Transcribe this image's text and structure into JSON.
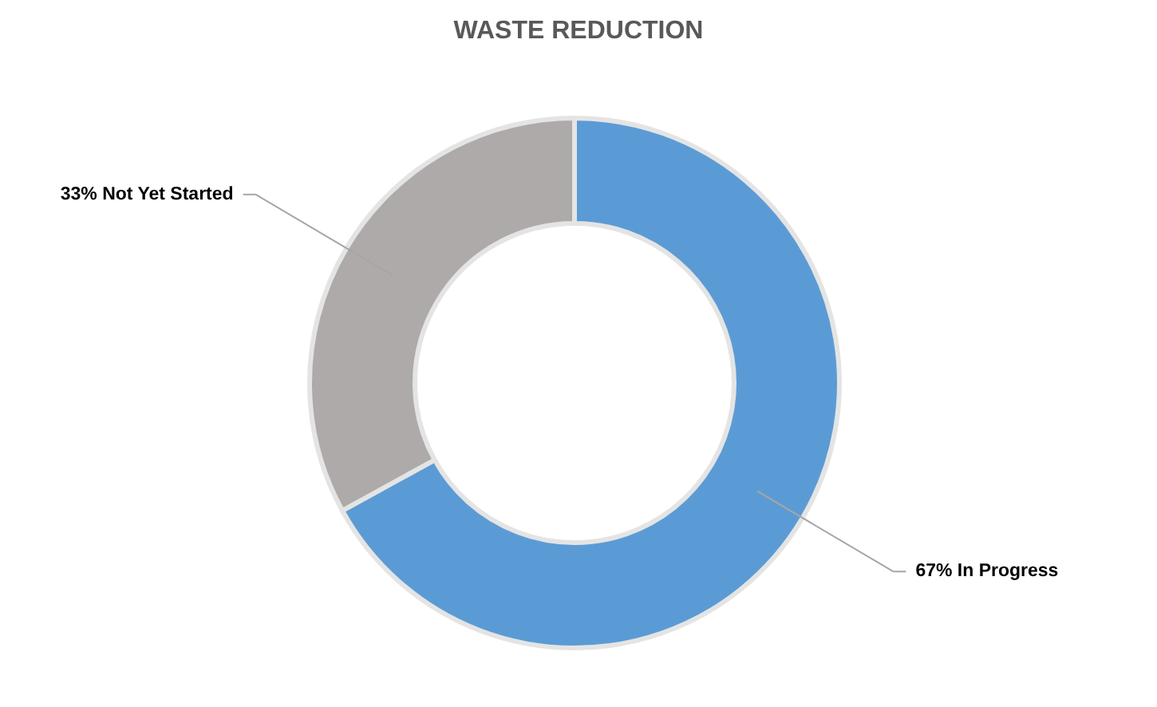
{
  "chart_data": {
    "type": "donut",
    "title": "WASTE REDUCTION",
    "categories": [
      "In Progress",
      "Not Yet Started"
    ],
    "values": [
      67,
      33
    ],
    "colors": [
      "#5b9bd5",
      "#aeaaaa"
    ],
    "value_labels": [
      "67%",
      "33%"
    ]
  }
}
